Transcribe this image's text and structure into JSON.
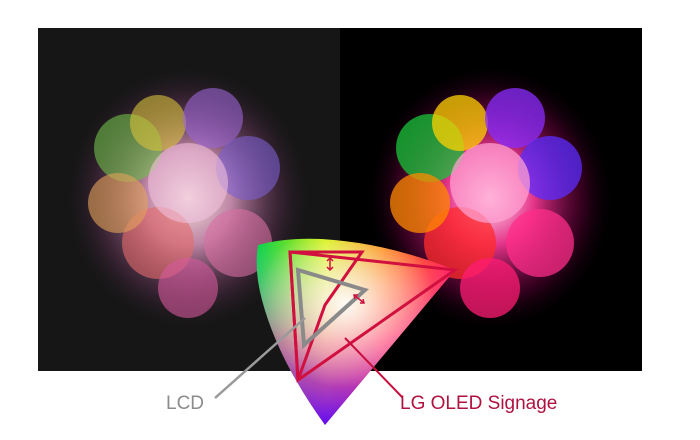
{
  "labels": {
    "lcd": "LCD",
    "oled": "LG OLED Signage"
  },
  "colors": {
    "lcd_background": "#161616",
    "oled_background": "#000000",
    "lcd_label": "#8c8c8c",
    "oled_label": "#b0123f",
    "oled_triangle": "#d1103f",
    "lcd_triangle": "#8a8a8a"
  },
  "icons": [
    "color-explosion-image",
    "color-gamut-diagram",
    "arrow-icon"
  ]
}
